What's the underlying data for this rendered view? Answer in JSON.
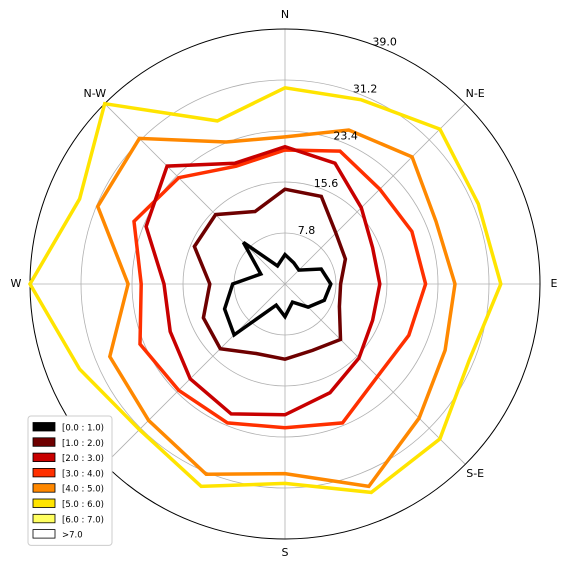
{
  "chart_data": {
    "type": "line",
    "subtype": "windrose",
    "title": "",
    "directions": [
      "E",
      "ENE",
      "N-E",
      "NNE",
      "N",
      "NNW",
      "N-W",
      "WNW",
      "W",
      "WSW",
      "S-W",
      "SSW",
      "S",
      "SSE",
      "S-E",
      "ESE"
    ],
    "direction_labels": [
      "E",
      "N-E",
      "N",
      "N-W",
      "W",
      "S-W",
      "S",
      "S-E"
    ],
    "radial_ticks": [
      "7.8",
      "15.6",
      "23.4",
      "31.2",
      "39.0"
    ],
    "rmax": 39.0,
    "grid": true,
    "legend_position": "lower-left",
    "series": [
      {
        "name": "[0.0 : 1.0)",
        "color": "#000000",
        "values": [
          7.0,
          6.0,
          3.0,
          3.5,
          4.5,
          3.0,
          9.0,
          4.0,
          8.0,
          10.0,
          11.0,
          3.5,
          5.0,
          3.0,
          5.0,
          6.5
        ]
      },
      {
        "name": "[1.0 : 2.0)",
        "color": "#6e0000",
        "values": [
          8.5,
          10.0,
          11.0,
          14.5,
          14.5,
          12.0,
          15.0,
          15.0,
          11.5,
          13.5,
          14.0,
          11.5,
          11.5,
          11.0,
          12.0,
          9.0
        ]
      },
      {
        "name": "[2.0 : 3.0)",
        "color": "#c80000",
        "values": [
          14.5,
          14.5,
          16.5,
          20.0,
          21.0,
          20.0,
          25.5,
          23.0,
          18.5,
          19.0,
          20.5,
          21.5,
          20.0,
          18.0,
          16.0,
          14.5
        ]
      },
      {
        "name": "[3.0 : 4.0)",
        "color": "#ff3000",
        "values": [
          21.5,
          21.0,
          20.5,
          22.0,
          20.5,
          19.5,
          23.0,
          25.0,
          22.0,
          24.0,
          23.0,
          23.0,
          22.0,
          23.0,
          20.0,
          20.5
        ]
      },
      {
        "name": "[4.0 : 5.0)",
        "color": "#ff8800",
        "values": [
          26.0,
          25.0,
          27.5,
          25.5,
          22.5,
          23.5,
          31.5,
          31.0,
          24.0,
          29.0,
          29.5,
          31.5,
          29.0,
          33.5,
          29.0,
          26.5
        ]
      },
      {
        "name": "[5.0 : 6.0)",
        "color": "#ffe400",
        "values": [
          33.0,
          32.0,
          33.5,
          30.5,
          30.0,
          27.0,
          39.0,
          34.0,
          39.0,
          34.0,
          31.5,
          33.5,
          30.5,
          34.5,
          33.5,
          30.5
        ]
      },
      {
        "name": "[6.0 : 7.0)",
        "color": "#ffff60",
        "values": []
      },
      {
        "name": ">7.0",
        "color": "#ffffff",
        "values": []
      }
    ]
  }
}
